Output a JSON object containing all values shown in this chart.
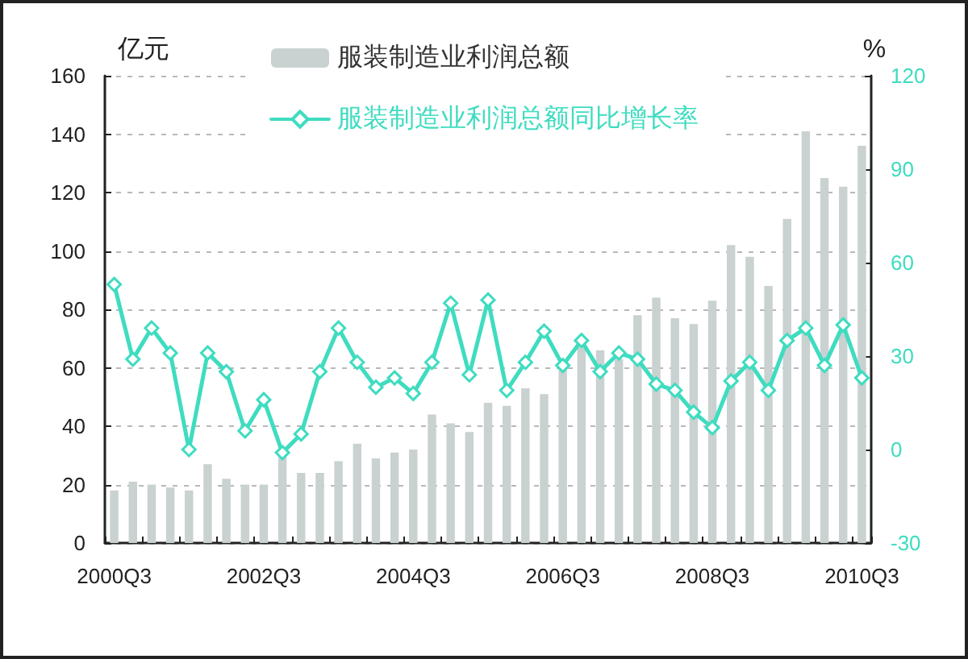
{
  "chart_data": {
    "type": "bar",
    "ylabel": "亿元",
    "y2label": "%",
    "categories": [
      "2000Q3",
      null,
      null,
      null,
      null,
      null,
      null,
      null,
      "2002Q3",
      null,
      null,
      null,
      null,
      null,
      null,
      null,
      "2004Q3",
      null,
      null,
      null,
      null,
      null,
      null,
      null,
      "2006Q3",
      null,
      null,
      null,
      null,
      null,
      null,
      null,
      "2008Q3",
      null,
      null,
      null,
      null,
      null,
      null,
      null,
      "2010Q3"
    ],
    "series": [
      {
        "name": "服装制造业利润总额",
        "color": "#c9d1d1",
        "values": [
          18,
          21,
          20,
          19,
          18,
          27,
          22,
          20,
          20,
          30,
          24,
          24,
          28,
          34,
          29,
          31,
          32,
          44,
          41,
          38,
          48,
          47,
          53,
          51,
          60,
          67,
          66,
          63,
          78,
          84,
          77,
          75,
          83,
          102,
          98,
          88,
          111,
          141,
          125,
          122,
          136
        ]
      },
      {
        "name": "服装制造业利润总额同比增长率",
        "type": "line",
        "axis": "y2",
        "color": "#3fdcc0",
        "values": [
          53,
          29,
          39,
          31,
          0,
          31,
          25,
          6,
          16,
          -1,
          5,
          25,
          39,
          28,
          20,
          23,
          18,
          28,
          47,
          24,
          48,
          19,
          28,
          38,
          27,
          35,
          25,
          31,
          29,
          21,
          19,
          12,
          7,
          22,
          28,
          19,
          35,
          39,
          27,
          40,
          23
        ]
      }
    ],
    "ylim": [
      0,
      160
    ],
    "yticks": [
      0,
      20,
      40,
      60,
      80,
      100,
      120,
      140,
      160
    ],
    "y2lim": [
      -30,
      120
    ],
    "y2ticks": [
      -30,
      0,
      30,
      60,
      90,
      120
    ],
    "grid": "y",
    "legend": "top",
    "marker": "diamond",
    "line_style": "solid"
  }
}
